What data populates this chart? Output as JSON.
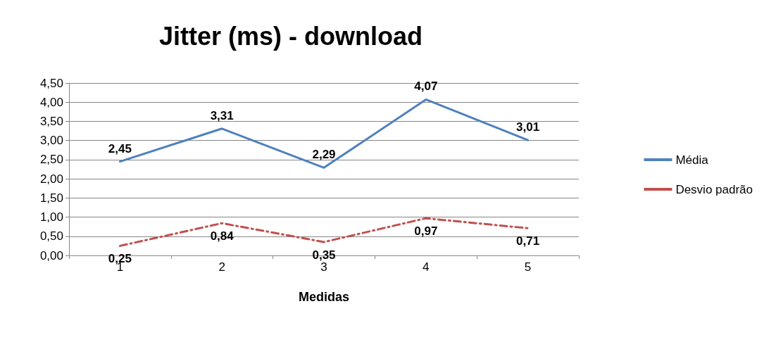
{
  "chart_data": {
    "type": "line",
    "title": "Jitter (ms) - download",
    "xlabel": "Medidas",
    "categories": [
      "1",
      "2",
      "3",
      "4",
      "5"
    ],
    "series": [
      {
        "name": "Média",
        "color": "#4f81bd",
        "line_style": "solid",
        "values": [
          2.45,
          3.31,
          2.29,
          4.07,
          3.01
        ],
        "value_labels": [
          "2,45",
          "3,31",
          "2,29",
          "4,07",
          "3,01"
        ]
      },
      {
        "name": "Desvio padrão",
        "color": "#c0504d",
        "line_style": "dashed",
        "values": [
          0.25,
          0.84,
          0.35,
          0.97,
          0.71
        ],
        "value_labels": [
          "0,25",
          "0,84",
          "0,35",
          "0,97",
          "0,71"
        ]
      }
    ],
    "ylim": [
      0,
      4.5
    ],
    "yticks": [
      {
        "value": 0,
        "label": "0,00"
      },
      {
        "value": 0.5,
        "label": "0,50"
      },
      {
        "value": 1,
        "label": "1,00"
      },
      {
        "value": 1.5,
        "label": "1,50"
      },
      {
        "value": 2,
        "label": "2,00"
      },
      {
        "value": 2.5,
        "label": "2,50"
      },
      {
        "value": 3,
        "label": "3,00"
      },
      {
        "value": 3.5,
        "label": "3,50"
      },
      {
        "value": 4,
        "label": "4,00"
      },
      {
        "value": 4.5,
        "label": "4,50"
      }
    ],
    "grid": "y",
    "legend": "right",
    "marker": "none"
  }
}
